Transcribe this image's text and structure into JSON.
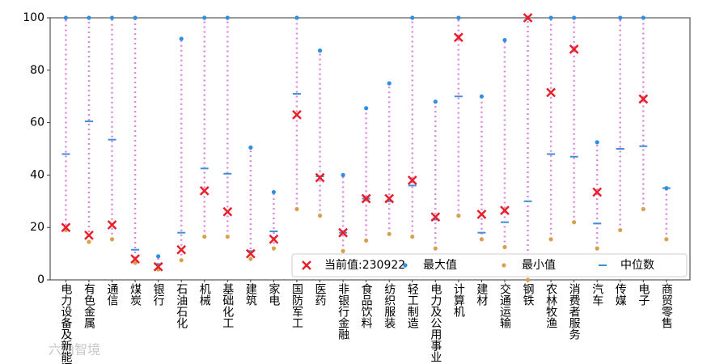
{
  "chart_data": {
    "type": "range-dot",
    "categories": [
      "电力设备及新能源",
      "有色金属",
      "通信",
      "煤炭",
      "银行",
      "石油石化",
      "机械",
      "基础化工",
      "建筑",
      "家电",
      "国防军工",
      "医药",
      "非银行金融",
      "食品饮料",
      "纺织服装",
      "轻工制造",
      "电力及公用事业",
      "计算机",
      "建材",
      "交通运输",
      "钢铁",
      "农林牧渔",
      "消费者服务",
      "汽车",
      "传媒",
      "电子",
      "商贸零售"
    ],
    "series": [
      {
        "name": "当前值:230922",
        "color": "#e8202a",
        "marker": "x",
        "values": [
          20,
          17,
          21,
          8,
          5,
          11.5,
          34,
          26,
          10,
          15.5,
          63,
          39,
          18,
          31,
          31,
          38,
          24,
          92.5,
          25,
          26.5,
          100,
          71.5,
          88,
          33.5,
          null,
          69,
          null
        ]
      },
      {
        "name": "最大值",
        "color": "#2f8fe0",
        "marker": "dot",
        "values": [
          100,
          100,
          100,
          100,
          9,
          92,
          100,
          100,
          50.5,
          33.5,
          100,
          87.5,
          40,
          65.5,
          75,
          100,
          68,
          100,
          70,
          91.5,
          100,
          100,
          100,
          52.5,
          100,
          100,
          35
        ]
      },
      {
        "name": "最小值",
        "color": "#d9a050",
        "marker": "dot",
        "values": [
          19,
          14.5,
          15.5,
          6.5,
          4,
          7.5,
          16.5,
          16.5,
          8,
          12,
          27,
          24.5,
          11,
          15,
          17.5,
          16.5,
          12,
          24.5,
          15.5,
          12.5,
          0,
          15.5,
          22,
          12,
          19,
          27,
          15.5
        ]
      },
      {
        "name": "中位数",
        "color": "#3f8fd8",
        "marker": "dash",
        "values": [
          48,
          60.5,
          53.5,
          11.5,
          6,
          18,
          42.5,
          40.5,
          11,
          18.5,
          71,
          39.5,
          18,
          31,
          30,
          36,
          23,
          70,
          18,
          22,
          30,
          48,
          47,
          21.5,
          50,
          51,
          35
        ]
      }
    ],
    "range_color": "#dd88dd",
    "ylim": [
      0,
      100
    ],
    "yticks": [
      0,
      20,
      40,
      60,
      80,
      100
    ],
    "legend": "lower right",
    "watermark": "六曲智境"
  }
}
